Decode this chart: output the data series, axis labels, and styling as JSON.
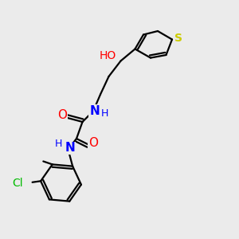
{
  "background_color": "#ebebeb",
  "atom_colors": {
    "O": "#ff0000",
    "N": "#0000ff",
    "S": "#cccc00",
    "Cl": "#00bb00",
    "C": "#000000",
    "H": "#000000"
  },
  "figsize": [
    3.0,
    3.0
  ],
  "dpi": 100
}
